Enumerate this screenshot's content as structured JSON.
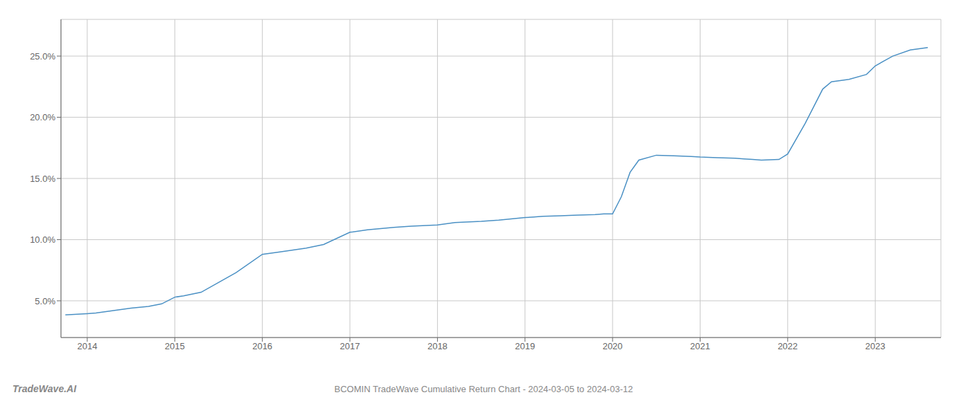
{
  "chart_data": {
    "type": "line",
    "title": "BCOMIN TradeWave Cumulative Return Chart - 2024-03-05 to 2024-03-12",
    "annotations": [
      {
        "text": "TradeWave.AI"
      }
    ],
    "x": [
      2013.75,
      2014.0,
      2014.1,
      2014.2,
      2014.3,
      2014.5,
      2014.7,
      2014.85,
      2015.0,
      2015.1,
      2015.3,
      2015.5,
      2015.7,
      2016.0,
      2016.2,
      2016.5,
      2016.7,
      2017.0,
      2017.2,
      2017.5,
      2017.7,
      2018.0,
      2018.2,
      2018.5,
      2018.7,
      2019.0,
      2019.1,
      2019.2,
      2019.4,
      2019.6,
      2019.8,
      2019.9,
      2020.0,
      2020.1,
      2020.2,
      2020.3,
      2020.5,
      2020.7,
      2020.9,
      2021.0,
      2021.2,
      2021.4,
      2021.5,
      2021.6,
      2021.7,
      2021.9,
      2022.0,
      2022.2,
      2022.4,
      2022.5,
      2022.6,
      2022.7,
      2022.9,
      2023.0,
      2023.2,
      2023.4,
      2023.6
    ],
    "values": [
      3.85,
      3.95,
      4.0,
      4.1,
      4.2,
      4.4,
      4.55,
      4.75,
      5.3,
      5.4,
      5.7,
      6.5,
      7.3,
      8.8,
      9.0,
      9.3,
      9.6,
      10.6,
      10.8,
      11.0,
      11.1,
      11.2,
      11.4,
      11.5,
      11.6,
      11.8,
      11.85,
      11.9,
      11.95,
      12.0,
      12.05,
      12.1,
      12.1,
      13.5,
      15.5,
      16.5,
      16.9,
      16.85,
      16.8,
      16.75,
      16.7,
      16.65,
      16.6,
      16.55,
      16.5,
      16.55,
      17.0,
      19.5,
      22.3,
      22.9,
      23.0,
      23.1,
      23.5,
      24.2,
      25.0,
      25.5,
      25.7
    ],
    "color": "#4a90c4",
    "xlim": [
      2013.7,
      2023.75
    ],
    "xticks": [
      2014,
      2015,
      2016,
      2017,
      2018,
      2019,
      2020,
      2021,
      2022,
      2023
    ],
    "ylim": [
      2.0,
      28.0
    ],
    "yticks": [
      {
        "value": 5.0,
        "label": "5.0%"
      },
      {
        "value": 10.0,
        "label": "10.0%"
      },
      {
        "value": 15.0,
        "label": "15.0%"
      },
      {
        "value": 20.0,
        "label": "20.0%"
      },
      {
        "value": 25.0,
        "label": "25.0%"
      }
    ],
    "grid": true
  }
}
